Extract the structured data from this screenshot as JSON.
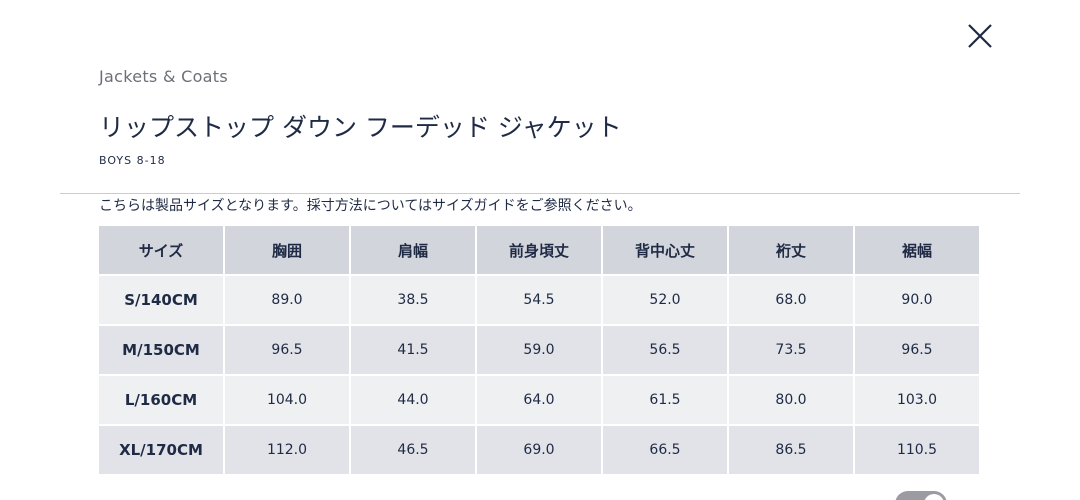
{
  "header": {
    "category": "Jackets & Coats",
    "title": "リップストップ ダウン フーデッド ジャケット",
    "subtitle": "BOYS 8-18"
  },
  "note": "こちらは製品サイズとなります。採寸方法についてはサイズガイドをご参照ください。",
  "table": {
    "columns": [
      "サイズ",
      "胸囲",
      "肩幅",
      "前身頃丈",
      "背中心丈",
      "裄丈",
      "裾幅"
    ],
    "rows": [
      [
        "S/140CM",
        "89.0",
        "38.5",
        "54.5",
        "52.0",
        "68.0",
        "90.0"
      ],
      [
        "M/150CM",
        "96.5",
        "41.5",
        "59.0",
        "56.5",
        "73.5",
        "96.5"
      ],
      [
        "L/160CM",
        "104.0",
        "44.0",
        "64.0",
        "61.5",
        "80.0",
        "103.0"
      ],
      [
        "XL/170CM",
        "112.0",
        "46.5",
        "69.0",
        "66.5",
        "86.5",
        "110.5"
      ]
    ]
  }
}
